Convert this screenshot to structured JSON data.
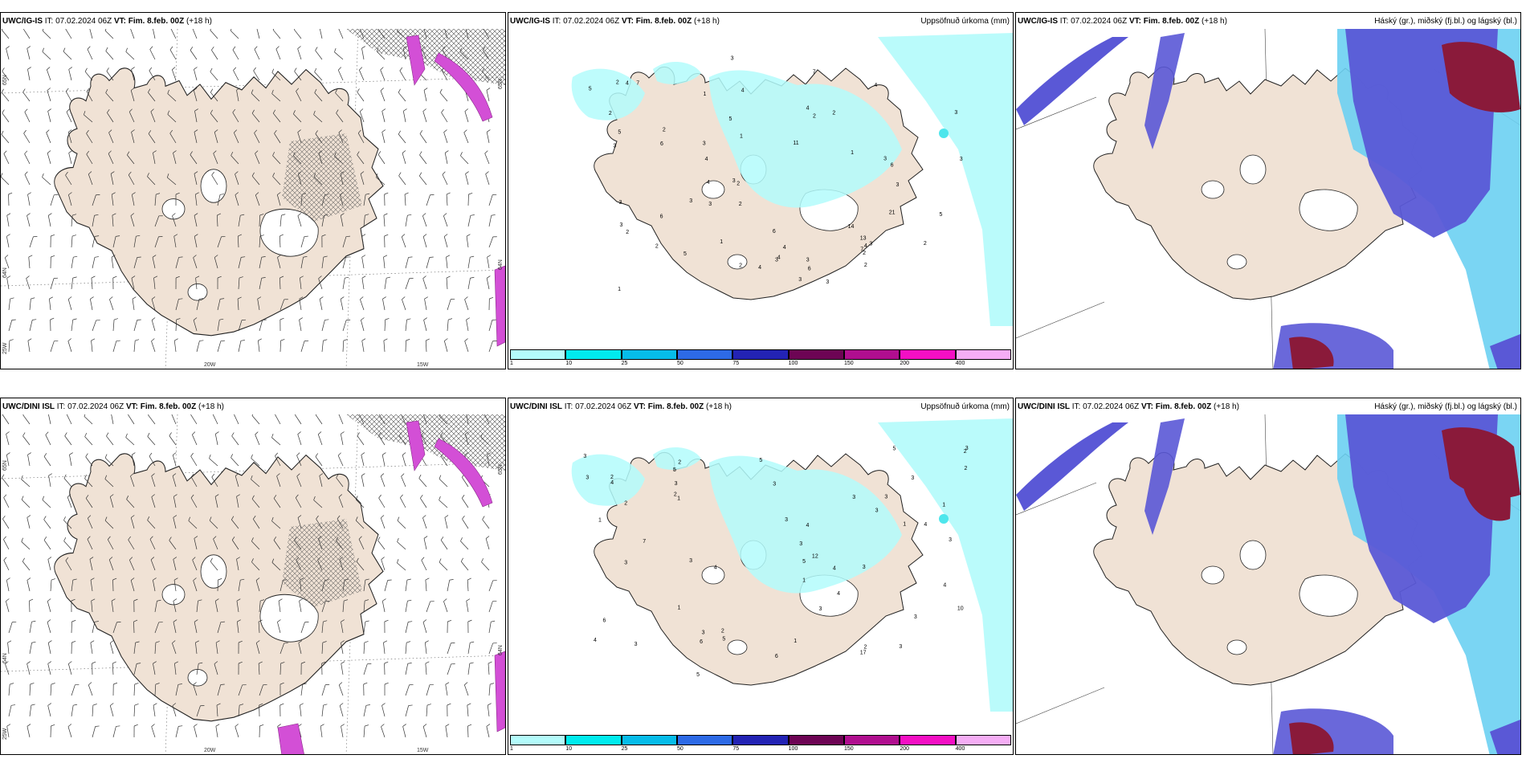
{
  "rows": [
    {
      "panels": [
        {
          "id": "r1-wind",
          "title_bold": "UWC/IG-IS",
          "title_it": " IT: 07.02.2024 06Z ",
          "title_vt_bold": "VT: Fim. 8.feb. 00Z",
          "title_lead": " (+18 h)",
          "right_title": "",
          "lat_labels": [
            "65N",
            "64N",
            "25W"
          ],
          "lon_labels": [
            "20W",
            "15W"
          ],
          "right_lat_labels": [
            "65N",
            "64N"
          ]
        },
        {
          "id": "r1-precip",
          "title_bold": "UWC/IG-IS",
          "title_it": " IT: 07.02.2024 06Z ",
          "title_vt_bold": "VT: Fim. 8.feb. 00Z",
          "title_lead": " (+18 h)",
          "right_title": "Uppsöfnuð úrkoma (mm)",
          "numbers": [
            "2",
            "4",
            "11",
            "5",
            "3",
            "2",
            "4",
            "3",
            "3",
            "2",
            "6",
            "2",
            "4",
            "3",
            "4",
            "6",
            "13",
            "4",
            "5",
            "6",
            "7",
            "3",
            "6",
            "4",
            "3",
            "5",
            "7",
            "3",
            "1",
            "3",
            "2",
            "14",
            "21",
            "6",
            "7",
            "5",
            "4",
            "3",
            "2",
            "3",
            "1",
            "2",
            "4",
            "3",
            "3",
            "4",
            "5",
            "2",
            "3",
            "4",
            "3",
            "2",
            "3",
            "1",
            "3",
            "1",
            "3",
            "1",
            "2",
            "2",
            "2",
            "2"
          ]
        },
        {
          "id": "r1-cloud",
          "title_bold": "UWC/IG-IS",
          "title_it": " IT: 07.02.2024 06Z ",
          "title_vt_bold": "VT: Fim. 8.feb. 00Z",
          "title_lead": " (+18 h)",
          "right_title": "Háský (gr.), miðský (fj.bl.) og lágský (bl.)"
        }
      ]
    },
    {
      "panels": [
        {
          "id": "r2-wind",
          "title_bold": "UWC/DINI ISL",
          "title_it": " IT: 07.02.2024 06Z ",
          "title_vt_bold": "VT: Fim. 8.feb. 00Z",
          "title_lead": " (+18 h)",
          "right_title": "",
          "lat_labels": [
            "65N",
            "64N",
            "25W"
          ],
          "lon_labels": [
            "20W",
            "15W"
          ],
          "right_lat_labels": [
            "65N",
            "64N"
          ]
        },
        {
          "id": "r2-precip",
          "title_bold": "UWC/DINI ISL",
          "title_it": " IT: 07.02.2024 06Z ",
          "title_vt_bold": "VT: Fim. 8.feb. 00Z",
          "title_lead": " (+18 h)",
          "right_title": "Uppsöfnuð úrkoma (mm)",
          "numbers": [
            "2",
            "3",
            "2",
            "4",
            "3",
            "1",
            "1",
            "3",
            "1",
            "1",
            "4",
            "7",
            "4",
            "10",
            "3",
            "3",
            "6",
            "3",
            "3",
            "5",
            "6",
            "2",
            "3",
            "12",
            "17",
            "3",
            "5",
            "2",
            "3",
            "3",
            "2",
            "4",
            "3",
            "1",
            "4",
            "3",
            "2",
            "3",
            "4",
            "6",
            "5",
            "3",
            "3",
            "2",
            "3",
            "4",
            "5",
            "4",
            "3",
            "3",
            "1",
            "5",
            "5",
            "1",
            "2",
            "3"
          ]
        },
        {
          "id": "r2-cloud",
          "title_bold": "UWC/DINI ISL",
          "title_it": " IT: 07.02.2024 06Z ",
          "title_vt_bold": "VT: Fim. 8.feb. 00Z",
          "title_lead": " (+18 h)",
          "right_title": "Háský (gr.), miðský (fj.bl.) og lágský (bl.)"
        }
      ]
    }
  ],
  "colorbar": {
    "ticks": [
      "1",
      "10",
      "25",
      "50",
      "75",
      "100",
      "150",
      "200",
      "400"
    ],
    "colors": [
      "#b3fbfb",
      "#00ebee",
      "#06bce9",
      "#2d6ae6",
      "#2323b4",
      "#6d0454",
      "#b00e8f",
      "#f40fc4",
      "#f5adf5"
    ]
  },
  "colors": {
    "land": "#f0e2d5",
    "precip_light": "#b3fbfb",
    "precip_mid": "#4ee6ec",
    "cloud_low": "#5a58d6",
    "cloud_mid": "#2a2cba",
    "cloud_high": "#8a1a3a",
    "cloud_light": "#6cd0f2",
    "magenta": "#d34fd6"
  }
}
